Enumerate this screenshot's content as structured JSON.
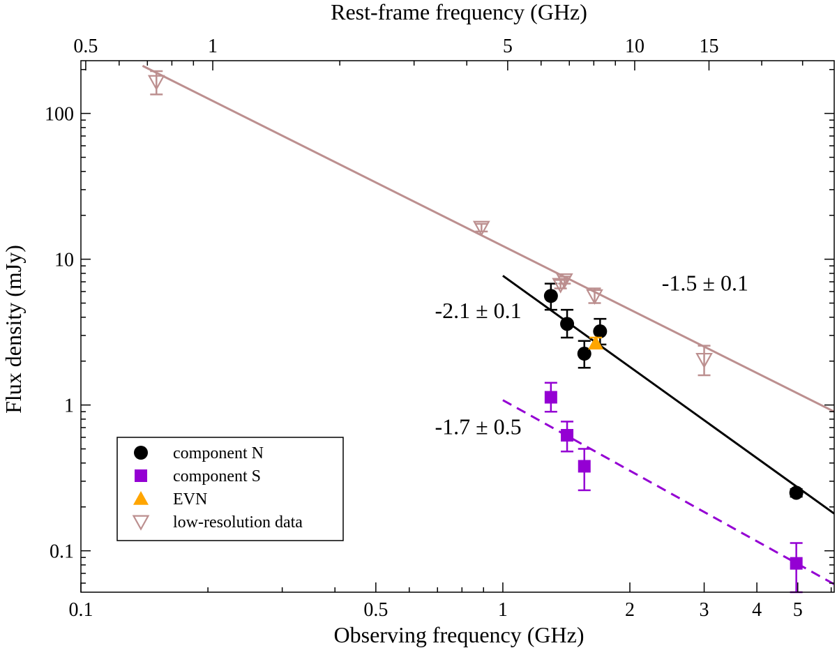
{
  "chart_data": {
    "type": "scatter",
    "xlabel": "Observing frequency (GHz)",
    "ylabel": "Flux density (mJy)",
    "x2label": "Rest-frame frequency (GHz)",
    "x_scale": "log",
    "y_scale": "log",
    "xlim": [
      0.1,
      6.1
    ],
    "ylim": [
      0.052,
      230
    ],
    "x2_factor": 4.87,
    "x_ticks": [
      {
        "v": 0.1,
        "label": "0.1"
      },
      {
        "v": 0.5,
        "label": "0.5"
      },
      {
        "v": 1,
        "label": "1"
      },
      {
        "v": 2,
        "label": "2"
      },
      {
        "v": 3,
        "label": "3"
      },
      {
        "v": 4,
        "label": "4"
      },
      {
        "v": 5,
        "label": "5"
      }
    ],
    "x2_ticks": [
      {
        "v": 0.5,
        "label": "0.5"
      },
      {
        "v": 1,
        "label": "1"
      },
      {
        "v": 5,
        "label": "5"
      },
      {
        "v": 10,
        "label": "10"
      },
      {
        "v": 15,
        "label": "15"
      }
    ],
    "y_ticks": [
      {
        "v": 0.1,
        "label": "0.1"
      },
      {
        "v": 1,
        "label": "1"
      },
      {
        "v": 10,
        "label": "10"
      },
      {
        "v": 100,
        "label": "100"
      }
    ],
    "legend_position": "bottom-left",
    "series": [
      {
        "name": "component N",
        "marker": "circle",
        "color": "#000000",
        "points": [
          {
            "x": 1.3,
            "y": 5.6,
            "lo": 4.5,
            "hi": 6.8
          },
          {
            "x": 1.42,
            "y": 3.6,
            "lo": 2.9,
            "hi": 4.5
          },
          {
            "x": 1.56,
            "y": 2.25,
            "lo": 1.8,
            "hi": 2.75
          },
          {
            "x": 1.7,
            "y": 3.2,
            "lo": 2.6,
            "hi": 3.9
          },
          {
            "x": 4.96,
            "y": 0.25,
            "lo": 0.235,
            "hi": 0.265
          }
        ]
      },
      {
        "name": "component S",
        "marker": "square",
        "color": "#9400d3",
        "points": [
          {
            "x": 1.3,
            "y": 1.13,
            "lo": 0.9,
            "hi": 1.42
          },
          {
            "x": 1.42,
            "y": 0.62,
            "lo": 0.48,
            "hi": 0.77
          },
          {
            "x": 1.56,
            "y": 0.38,
            "lo": 0.26,
            "hi": 0.5
          },
          {
            "x": 4.96,
            "y": 0.082,
            "lo": 0.052,
            "hi": 0.113
          }
        ]
      },
      {
        "name": "EVN",
        "marker": "triangle-up",
        "color": "#ffa500",
        "points": [
          {
            "x": 1.66,
            "y": 2.65,
            "lo": 2.45,
            "hi": 2.9
          }
        ]
      },
      {
        "name": "low-resolution data",
        "marker": "triangle-down-open",
        "color": "#bc8f8f",
        "points": [
          {
            "x": 0.151,
            "y": 165,
            "lo": 135,
            "hi": 195
          },
          {
            "x": 0.89,
            "y": 16.5,
            "lo": 15.5,
            "hi": 17.5
          },
          {
            "x": 1.37,
            "y": 6.7,
            "lo": 6.3,
            "hi": 7.2
          },
          {
            "x": 1.4,
            "y": 7.2,
            "lo": 6.8,
            "hi": 7.6
          },
          {
            "x": 1.65,
            "y": 5.6,
            "lo": 5.0,
            "hi": 6.3
          },
          {
            "x": 3.0,
            "y": 2.05,
            "lo": 1.6,
            "hi": 2.55
          }
        ]
      }
    ],
    "fits": [
      {
        "color": "#bc8f8f",
        "dash": "",
        "x1": 0.14,
        "y1": 212,
        "x2": 6.1,
        "y2": 0.9
      },
      {
        "color": "#000000",
        "dash": "",
        "x1": 1.0,
        "y1": 7.7,
        "x2": 6.1,
        "y2": 0.18
      },
      {
        "color": "#9400d3",
        "dash": "14 9",
        "x1": 1.0,
        "y1": 1.08,
        "x2": 6.1,
        "y2": 0.059
      }
    ],
    "annotations": [
      {
        "text": "-2.1 ± 0.1",
        "x": 0.69,
        "y": 3.95
      },
      {
        "text": "-1.5 ± 0.1",
        "x": 2.38,
        "y": 6.1
      },
      {
        "text": "-1.7 ± 0.5",
        "x": 0.69,
        "y": 0.63
      }
    ]
  }
}
